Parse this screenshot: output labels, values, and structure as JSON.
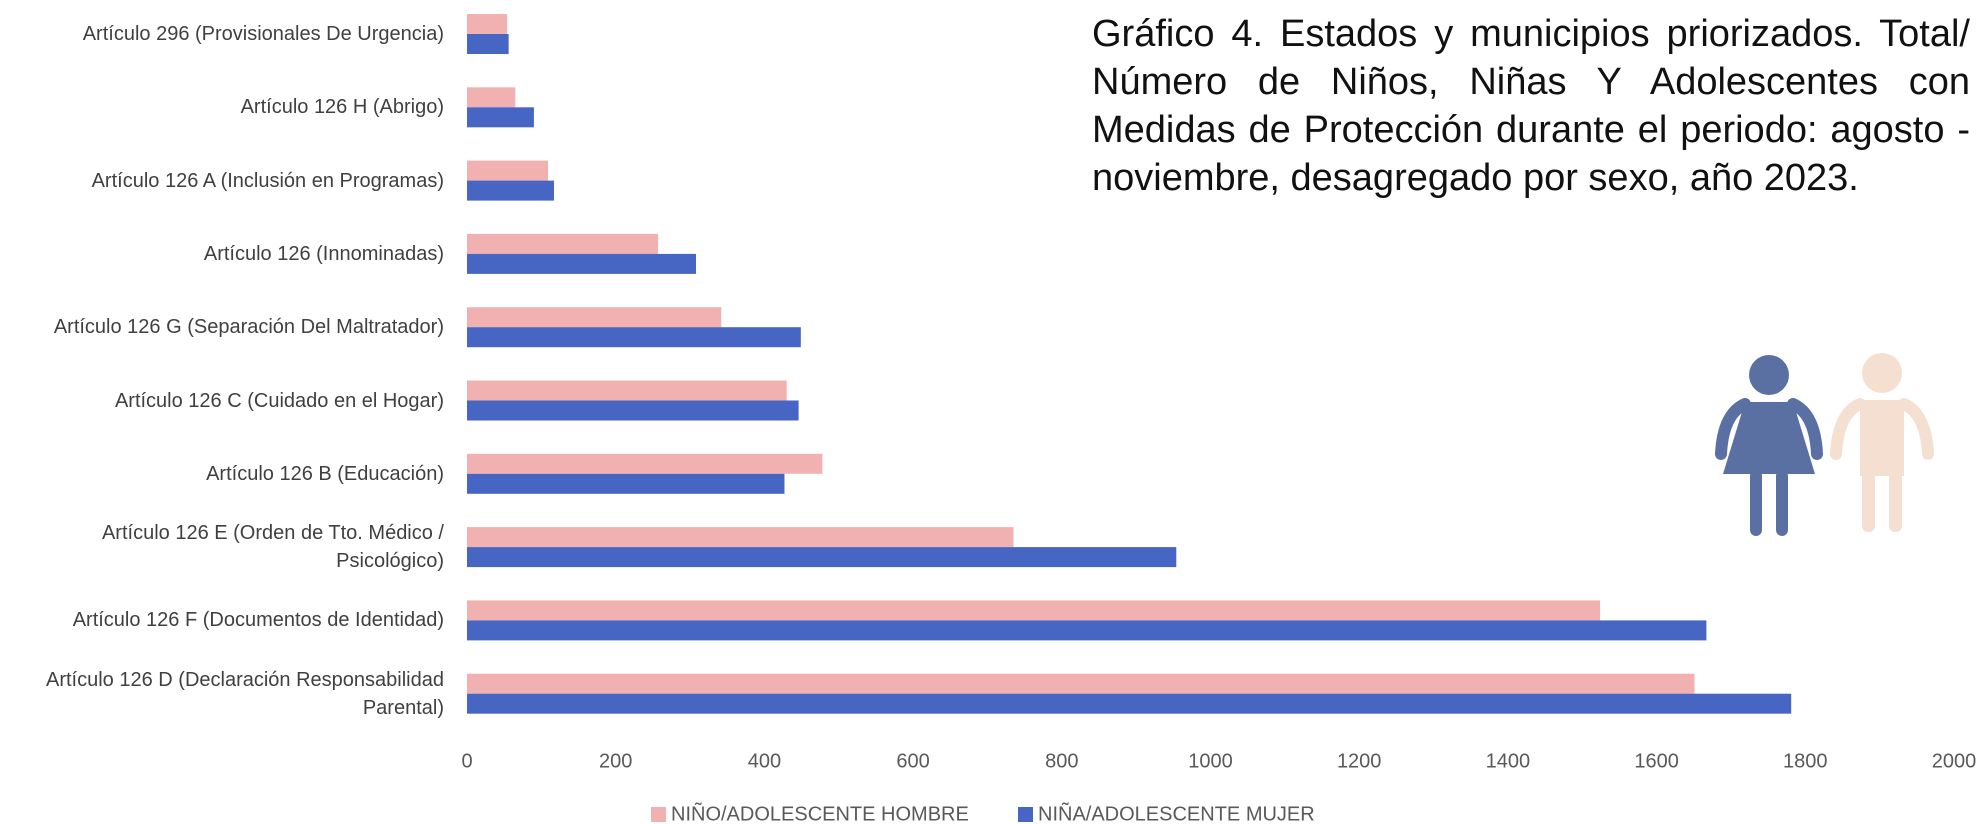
{
  "chart_data": {
    "type": "barh",
    "title": "Gráfico 4. Estados y municipios priorizados. Total/ Número de Niños, Niñas Y Adolescentes con Medidas de Protección durante el periodo: agosto - noviembre, desagregado por sexo, año 2023.",
    "categories": [
      "Artículo 296 (Provisionales De Urgencia)",
      "Artículo 126 H (Abrigo)",
      "Artículo 126 A (Inclusión en Programas)",
      "Artículo 126 (Innominadas)",
      "Artículo 126 G (Separación Del Maltratador)",
      "Artículo 126 C (Cuidado en el Hogar)",
      "Artículo 126 B (Educación)",
      "Artículo 126 E (Orden de Tto. Médico / Psicológico)",
      "Artículo 126 F (Documentos de Identidad)",
      "Artículo 126 D (Declaración Responsabilidad Parental)"
    ],
    "series": [
      {
        "name": "NIÑO/ADOLESCENTE HOMBRE",
        "color": "#f2b1b1",
        "values": [
          54,
          65,
          109,
          257,
          342,
          430,
          478,
          735,
          1524,
          1651
        ]
      },
      {
        "name": "NIÑA/ADOLESCENTE MUJER",
        "color": "#4766c4",
        "values": [
          56,
          90,
          117,
          308,
          449,
          446,
          427,
          954,
          1667,
          1781
        ]
      }
    ],
    "xlim": [
      0,
      2000
    ],
    "xticks": [
      0,
      200,
      400,
      600,
      800,
      1000,
      1200,
      1400,
      1600,
      1800,
      2000
    ],
    "grid": false,
    "legend": "bottom"
  }
}
